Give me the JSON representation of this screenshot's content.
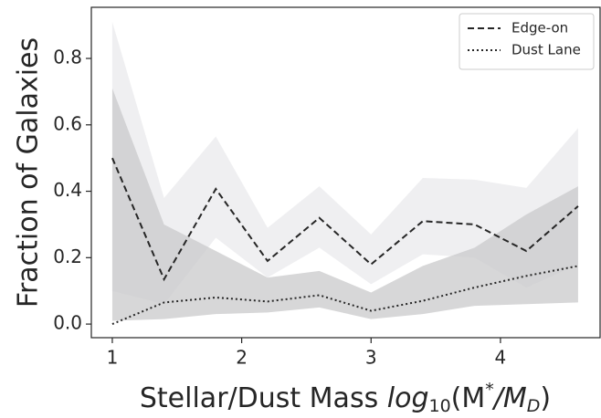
{
  "chart_data": {
    "type": "line",
    "ylabel": "Fraction of Galaxies",
    "xlabel": [
      "Stellar/Dust Mass ",
      "log",
      "10",
      "(M",
      "*",
      "/M",
      "D",
      ")"
    ],
    "x": [
      1.0,
      1.4,
      1.8,
      2.2,
      2.6,
      3.0,
      3.4,
      3.8,
      4.2,
      4.6
    ],
    "xlim": [
      0.838,
      4.77
    ],
    "xticks": [
      1,
      2,
      3,
      4
    ],
    "ylim": [
      -0.041,
      0.954
    ],
    "yticks": [
      {
        "value": 0,
        "label": "0.0"
      },
      0.2,
      0.4,
      0.6,
      0.8
    ],
    "legend": "upper right",
    "series": [
      {
        "name": "Edge-on",
        "color": "#262626",
        "dash": "dashed",
        "band_color": "#e9eaec",
        "values": [
          0.5,
          0.135,
          0.407,
          0.19,
          0.32,
          0.18,
          0.31,
          0.3,
          0.22,
          0.355
        ],
        "upper": [
          0.91,
          0.38,
          0.565,
          0.29,
          0.415,
          0.27,
          0.44,
          0.435,
          0.41,
          0.59
        ],
        "lower": [
          0.1,
          0.06,
          0.26,
          0.14,
          0.23,
          0.12,
          0.21,
          0.2,
          0.11,
          0.18
        ]
      },
      {
        "name": "Dust Lane",
        "color": "#262626",
        "dash": "dotted",
        "band_color": "#c9c9cb",
        "values": [
          0.0,
          0.065,
          0.08,
          0.068,
          0.087,
          0.04,
          0.07,
          0.11,
          0.145,
          0.175
        ],
        "upper": [
          0.71,
          0.3,
          0.22,
          0.14,
          0.16,
          0.095,
          0.175,
          0.23,
          0.33,
          0.415
        ],
        "lower": [
          0.01,
          0.015,
          0.03,
          0.035,
          0.05,
          0.015,
          0.03,
          0.055,
          0.06,
          0.065
        ]
      }
    ]
  }
}
